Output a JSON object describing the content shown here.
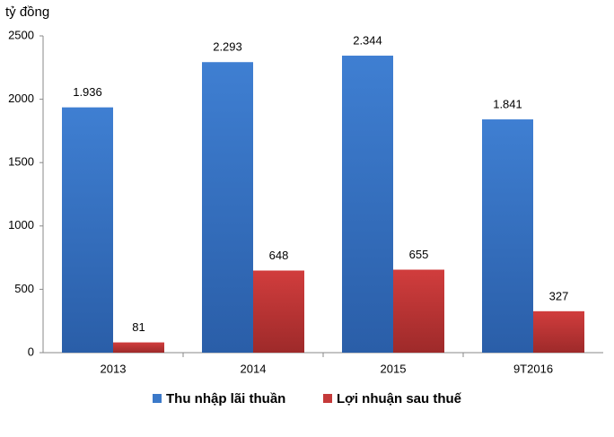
{
  "chart_data": {
    "type": "bar",
    "y_label": "tỷ đồng",
    "categories": [
      "2013",
      "2014",
      "2015",
      "9T2016"
    ],
    "series": [
      {
        "name": "Thu nhập lãi thuần",
        "color": "#3b79c9",
        "values": [
          1936,
          2293,
          2344,
          1841
        ],
        "value_labels": [
          "1.936",
          "2.293",
          "2.344",
          "1.841"
        ]
      },
      {
        "name": "Lợi nhuận sau thuế",
        "color": "#c53a3a",
        "values": [
          81,
          648,
          655,
          327
        ]
      }
    ],
    "ylim": [
      0,
      2500
    ],
    "yticks": [
      0,
      500,
      1000,
      1500,
      2000,
      2500
    ],
    "grid": false,
    "legend": "bottom"
  }
}
